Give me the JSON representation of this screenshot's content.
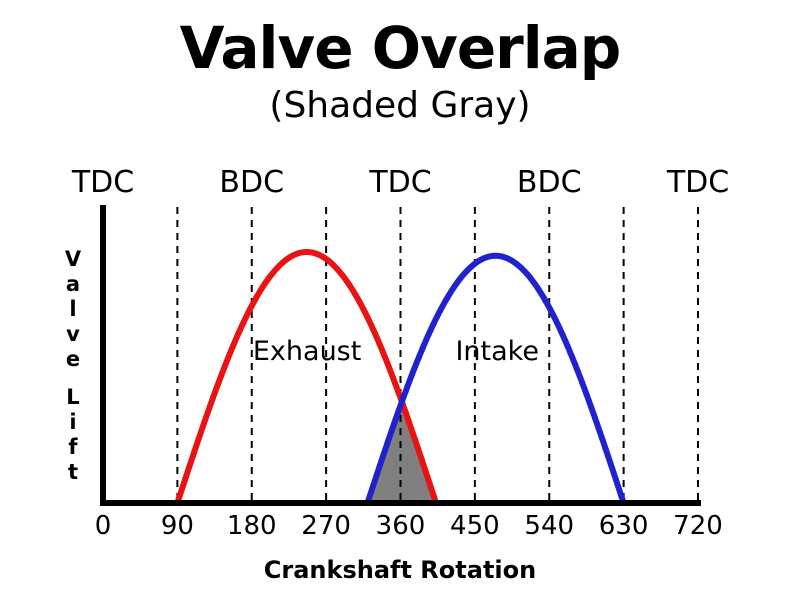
{
  "chart_data": {
    "type": "area",
    "title": "Valve Overlap",
    "subtitle": "(Shaded Gray)",
    "xlabel": "Crankshaft Rotation",
    "ylabel": "Valve Lift",
    "x_ticks": [
      0,
      90,
      180,
      270,
      360,
      450,
      540,
      630,
      720
    ],
    "xlim": [
      0,
      720
    ],
    "grid": "dashed-vertical",
    "gridlines_deg": [
      90,
      180,
      270,
      360,
      450,
      540,
      630,
      720
    ],
    "top_labels": [
      {
        "label": "TDC",
        "deg": 0
      },
      {
        "label": "BDC",
        "deg": 180
      },
      {
        "label": "TDC",
        "deg": 360
      },
      {
        "label": "BDC",
        "deg": 540
      },
      {
        "label": "TDC",
        "deg": 720
      }
    ],
    "series": [
      {
        "name": "Exhaust",
        "color": "#e81313",
        "curve": "half-sine",
        "open_deg": 90,
        "close_deg": 403,
        "peak_deg": 246,
        "peak_lift": 1.0,
        "label_deg": 247
      },
      {
        "name": "Intake",
        "color": "#2121cd",
        "curve": "half-sine",
        "open_deg": 320,
        "close_deg": 630,
        "peak_deg": 475,
        "peak_lift": 0.985,
        "label_deg": 477
      }
    ],
    "overlap": {
      "name": "valve-overlap-region",
      "from_deg": 320,
      "to_deg": 403,
      "fill": "#808080"
    },
    "axis_color": "#000000",
    "background": "#ffffff"
  }
}
